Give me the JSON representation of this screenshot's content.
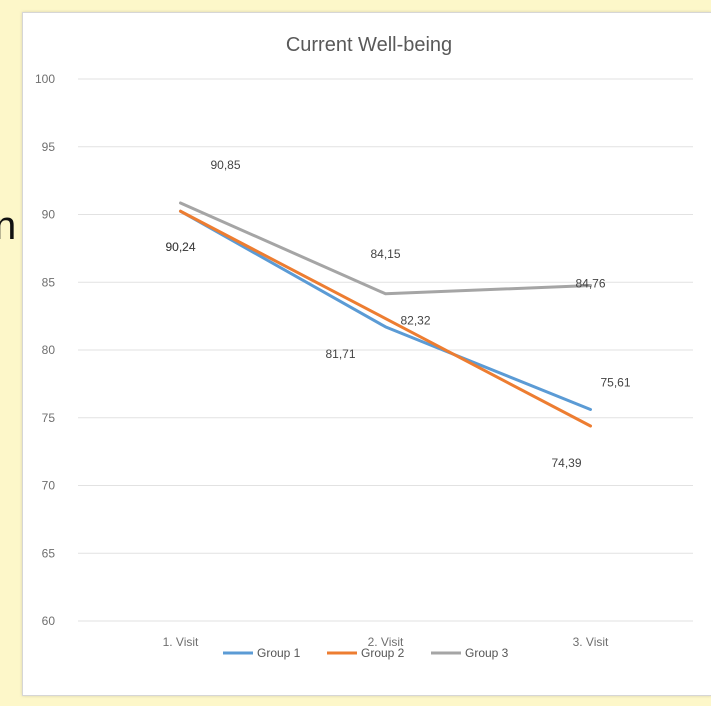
{
  "page": {
    "side_text": "n"
  },
  "chart_data": {
    "type": "line",
    "title": "Current Well-being",
    "xlabel": "",
    "ylabel": "",
    "categories": [
      "1. Visit",
      "2. Visit",
      "3. Visit"
    ],
    "ylim": [
      60,
      100
    ],
    "yticks": [
      60,
      65,
      70,
      75,
      80,
      85,
      90,
      95,
      100
    ],
    "grid": true,
    "legend": "bottom",
    "series": [
      {
        "name": "Group 1",
        "color": "#5b9bd5",
        "values": [
          90.24,
          81.71,
          75.61
        ],
        "labels": [
          "90,24",
          "81,71",
          "75,61"
        ]
      },
      {
        "name": "Group 2",
        "color": "#ed7d31",
        "values": [
          90.24,
          82.32,
          74.39
        ],
        "labels": [
          "90,24",
          "82,32",
          "74,39"
        ]
      },
      {
        "name": "Group 3",
        "color": "#a5a5a5",
        "values": [
          90.85,
          84.15,
          84.76
        ],
        "labels": [
          "90,85",
          "84,15",
          "84,76"
        ]
      }
    ]
  }
}
